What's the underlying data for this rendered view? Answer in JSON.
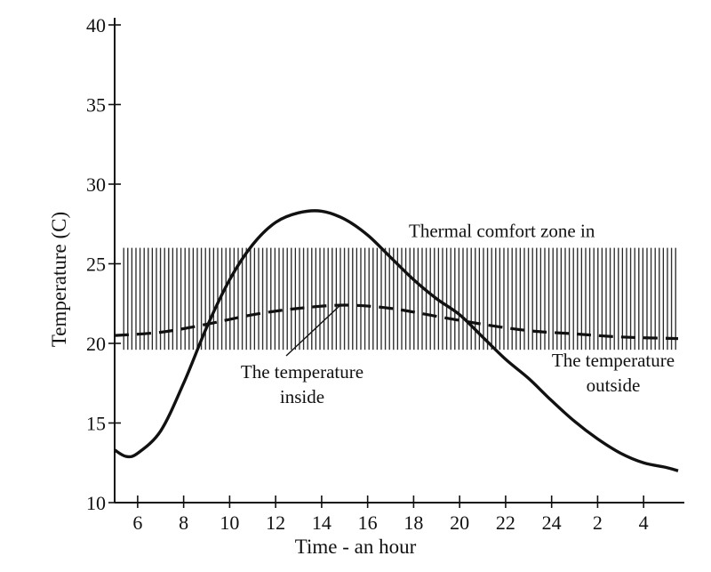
{
  "chart_data": {
    "type": "line",
    "xlabel": "Time - an hour",
    "ylabel": "Temperature (C)",
    "ylim": [
      10,
      40
    ],
    "y_ticks": [
      "10",
      "15",
      "20",
      "25",
      "30",
      "35",
      "40"
    ],
    "x_ticks": [
      "6",
      "8",
      "10",
      "12",
      "14",
      "16",
      "18",
      "20",
      "22",
      "24",
      "2",
      "4"
    ],
    "grid": false,
    "comfort_zone": {
      "label": "Thermal comfort zone in",
      "y_min": 19.6,
      "y_max": 26.0
    },
    "series": [
      {
        "label": "The temperature outside",
        "style": "solid",
        "color": "#111111",
        "points": [
          [
            5,
            13.3
          ],
          [
            5.5,
            12.9
          ],
          [
            6,
            13.1
          ],
          [
            7,
            14.5
          ],
          [
            8,
            17.5
          ],
          [
            9,
            21.0
          ],
          [
            10,
            24.0
          ],
          [
            11,
            26.2
          ],
          [
            12,
            27.6
          ],
          [
            13,
            28.2
          ],
          [
            14,
            28.3
          ],
          [
            15,
            27.8
          ],
          [
            16,
            26.8
          ],
          [
            17,
            25.4
          ],
          [
            18,
            24.0
          ],
          [
            19,
            22.8
          ],
          [
            20,
            21.8
          ],
          [
            21,
            20.4
          ],
          [
            22,
            19.0
          ],
          [
            23,
            17.8
          ],
          [
            24,
            16.4
          ],
          [
            25,
            15.1
          ],
          [
            26,
            14.0
          ],
          [
            27,
            13.1
          ],
          [
            28,
            12.5
          ],
          [
            29,
            12.2
          ],
          [
            29.5,
            12.0
          ]
        ]
      },
      {
        "label": "The temperature inside",
        "style": "dashed",
        "color": "#111111",
        "points": [
          [
            5,
            20.5
          ],
          [
            7,
            20.7
          ],
          [
            9,
            21.2
          ],
          [
            11,
            21.8
          ],
          [
            13,
            22.2
          ],
          [
            15,
            22.4
          ],
          [
            17,
            22.2
          ],
          [
            19,
            21.7
          ],
          [
            21,
            21.2
          ],
          [
            23,
            20.8
          ],
          [
            25,
            20.6
          ],
          [
            27,
            20.4
          ],
          [
            29.5,
            20.3
          ]
        ]
      }
    ]
  }
}
